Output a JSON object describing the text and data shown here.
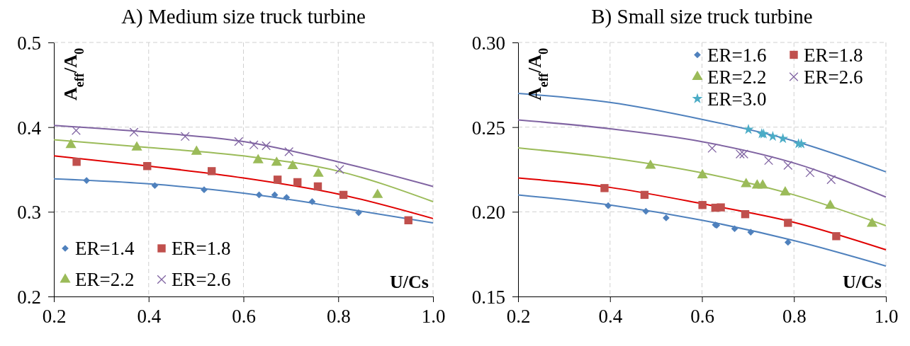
{
  "chart_data": [
    {
      "type": "scatter",
      "title": "A)  Medium size truck turbine",
      "xlabel": "U/Cs",
      "ylabel": "A$_{eff}$/A$_{0}$",
      "xlim": [
        0.2,
        1.0
      ],
      "ylim": [
        0.2,
        0.5
      ],
      "xticks": [
        0.2,
        0.4,
        0.6,
        0.8,
        {
          "value": 1.0,
          "label": "1.0"
        }
      ],
      "yticks": [
        0.2,
        0.3,
        0.4,
        0.5
      ],
      "grid": true,
      "legend": "bottom left",
      "series": [
        {
          "name": "ER=1.4",
          "color": "#4f81bd",
          "marker": "diamond",
          "x": [
            0.269,
            0.413,
            0.517,
            0.633,
            0.666,
            0.691,
            0.745,
            0.843
          ],
          "values": [
            0.337,
            0.331,
            0.326,
            0.32,
            0.32,
            0.317,
            0.312,
            0.299
          ]
        },
        {
          "name": "ER=1.8",
          "color": "#c0504d",
          "marker": "square",
          "x": [
            0.248,
            0.397,
            0.533,
            0.672,
            0.714,
            0.757,
            0.811,
            0.948
          ],
          "values": [
            0.359,
            0.354,
            0.348,
            0.338,
            0.335,
            0.33,
            0.32,
            0.29
          ]
        },
        {
          "name": "ER=2.2",
          "color": "#9bbb59",
          "marker": "triangle",
          "x": [
            0.236,
            0.375,
            0.501,
            0.631,
            0.67,
            0.704,
            0.758,
            0.883
          ],
          "values": [
            0.379,
            0.376,
            0.371,
            0.361,
            0.358,
            0.354,
            0.345,
            0.32
          ]
        },
        {
          "name": "ER=2.6",
          "color": "#8064a2",
          "marker": "cross",
          "x": [
            0.247,
            0.369,
            0.477,
            0.59,
            0.622,
            0.648,
            0.696,
            0.803
          ],
          "values": [
            0.396,
            0.394,
            0.389,
            0.383,
            0.379,
            0.378,
            0.371,
            0.35
          ]
        },
        {
          "type": "line",
          "color": "#4f81bd",
          "x": [
            0.2,
            0.4,
            0.6,
            0.715,
            0.8,
            1.0
          ],
          "values": [
            0.339,
            0.333,
            0.322,
            0.313,
            0.305,
            0.287
          ]
        },
        {
          "type": "line",
          "color": "#e00000",
          "x": [
            0.2,
            0.4,
            0.6,
            0.8,
            1.0
          ],
          "values": [
            0.366,
            0.354,
            0.34,
            0.321,
            0.292
          ]
        },
        {
          "type": "line",
          "color": "#9bbb59",
          "x": [
            0.2,
            0.4,
            0.6,
            0.8,
            1.0
          ],
          "values": [
            0.385,
            0.376,
            0.366,
            0.348,
            0.312
          ]
        },
        {
          "type": "line",
          "color": "#8064a2",
          "x": [
            0.2,
            0.4,
            0.6,
            0.8,
            1.0
          ],
          "values": [
            0.402,
            0.394,
            0.383,
            0.359,
            0.33
          ]
        }
      ]
    },
    {
      "type": "scatter",
      "title": "B) Small size truck turbine",
      "xlabel": "U/Cs",
      "ylabel": "A$_{eff}$/A$_{0}$",
      "xlim": [
        0.2,
        1.0
      ],
      "ylim": [
        0.15,
        0.3
      ],
      "xticks": [
        0.2,
        0.4,
        0.6,
        0.8,
        {
          "value": 1.0,
          "label": "1.0"
        }
      ],
      "yticks": [
        0.15,
        {
          "value": 0.2,
          "label": "0.20"
        },
        0.25,
        {
          "value": 0.3,
          "label": "0.30"
        }
      ],
      "grid": true,
      "legend": "top right",
      "series": [
        {
          "name": "ER=1.6",
          "color": "#4f81bd",
          "marker": "diamond",
          "x": [
            0.396,
            0.478,
            0.522,
            0.629,
            0.632,
            0.671,
            0.706,
            0.787
          ],
          "values": [
            0.2036,
            0.2003,
            0.1964,
            0.1923,
            0.192,
            0.19,
            0.188,
            0.182
          ]
        },
        {
          "name": "ER=1.8",
          "color": "#c0504d",
          "marker": "square",
          "x": [
            0.388,
            0.475,
            0.601,
            0.629,
            0.641,
            0.694,
            0.787,
            0.892
          ],
          "values": [
            0.214,
            0.21,
            0.204,
            0.2024,
            0.2026,
            0.1986,
            0.1935,
            0.1856
          ]
        },
        {
          "name": "ER=2.2",
          "color": "#9bbb59",
          "marker": "triangle",
          "x": [
            0.488,
            0.601,
            0.696,
            0.72,
            0.732,
            0.781,
            0.879,
            0.97
          ],
          "values": [
            0.2272,
            0.2216,
            0.2164,
            0.2156,
            0.2156,
            0.2115,
            0.2036,
            0.193
          ]
        },
        {
          "name": "ER=2.6",
          "color": "#8064a2",
          "marker": "cross",
          "x": [
            0.622,
            0.683,
            0.691,
            0.745,
            0.787,
            0.835,
            0.881
          ],
          "values": [
            0.2375,
            0.2341,
            0.2341,
            0.2303,
            0.2274,
            0.2231,
            0.219
          ]
        },
        {
          "name": "ER=3.0",
          "color": "#4bacc6",
          "marker": "star",
          "x": [
            0.701,
            0.73,
            0.734,
            0.754,
            0.776,
            0.81,
            0.816
          ],
          "values": [
            0.2486,
            0.2461,
            0.2459,
            0.2445,
            0.2432,
            0.2402,
            0.2401
          ]
        },
        {
          "type": "line",
          "color": "#4f81bd",
          "x": [
            0.2,
            0.4,
            0.6,
            0.8,
            1.0
          ],
          "values": [
            0.21,
            0.204,
            0.195,
            0.183,
            0.168
          ]
        },
        {
          "type": "line",
          "color": "#e00000",
          "x": [
            0.2,
            0.4,
            0.6,
            0.8,
            1.0
          ],
          "values": [
            0.22,
            0.2144,
            0.2048,
            0.1938,
            0.1776
          ]
        },
        {
          "type": "line",
          "color": "#9bbb59",
          "x": [
            0.2,
            0.4,
            0.6,
            0.8,
            1.0
          ],
          "values": [
            0.2377,
            0.2318,
            0.223,
            0.21,
            0.1918
          ]
        },
        {
          "type": "line",
          "color": "#8064a2",
          "x": [
            0.2,
            0.4,
            0.6,
            0.8,
            1.0
          ],
          "values": [
            0.2543,
            0.249,
            0.2414,
            0.2288,
            0.2087
          ]
        },
        {
          "type": "line",
          "color": "#4f81bd",
          "x": [
            0.2,
            0.4,
            0.6,
            0.8,
            1.0
          ],
          "values": [
            0.2699,
            0.2646,
            0.2546,
            0.2418,
            0.2236
          ]
        }
      ]
    }
  ]
}
